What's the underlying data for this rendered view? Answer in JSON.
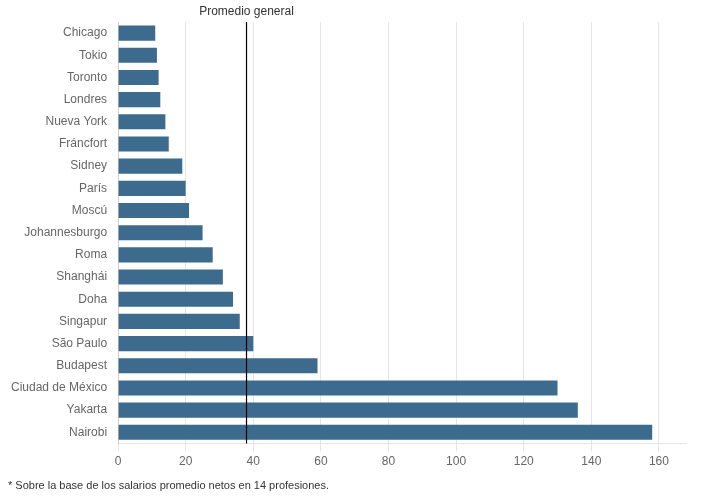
{
  "chart_data": {
    "type": "bar",
    "orientation": "horizontal",
    "categories": [
      "Chicago",
      "Tokio",
      "Toronto",
      "Londres",
      "Nueva York",
      "Fráncfort",
      "Sidney",
      "París",
      "Moscú",
      "Johannesburgo",
      "Roma",
      "Shanghái",
      "Doha",
      "Singapur",
      "São Paulo",
      "Budapest",
      "Ciudad de México",
      "Yakarta",
      "Nairobi"
    ],
    "values": [
      11,
      11.5,
      12,
      12.5,
      14,
      15,
      19,
      20,
      21,
      25,
      28,
      31,
      34,
      36,
      40,
      59,
      130,
      136,
      158
    ],
    "color": "#3d6b8e",
    "xlim": [
      0,
      168
    ],
    "xticks": [
      0,
      20,
      40,
      60,
      80,
      100,
      120,
      140,
      160
    ],
    "grid": true,
    "annotations": [
      {
        "x": 38,
        "label": "Promedio general",
        "color": "#000000"
      }
    ],
    "footnote": "* Sobre la base de los salarios promedio netos en 14 profesiones."
  }
}
